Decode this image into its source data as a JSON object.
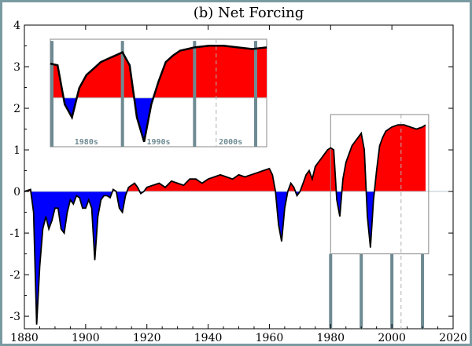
{
  "chart_data": {
    "type": "area",
    "title": "(b)  Net Forcing",
    "xlabel": "",
    "ylabel": "",
    "xlim": [
      1880,
      2020
    ],
    "ylim": [
      -3.3,
      4
    ],
    "xticks": [
      1880,
      1900,
      1920,
      1940,
      1960,
      1980,
      2000,
      2020
    ],
    "yticks": [
      4,
      3,
      2,
      1,
      0,
      -1,
      -2,
      -3
    ],
    "grid": false,
    "colors": {
      "positive": "#ff0000",
      "negative": "#0000ff",
      "line": "#000000",
      "highlight": "#6e8a92",
      "dashed": "#b0b0b0"
    },
    "series": [
      {
        "x": [
          1880,
          1882,
          1883,
          1884,
          1885,
          1886,
          1887,
          1888,
          1889,
          1890,
          1891,
          1892,
          1893,
          1894,
          1895,
          1896,
          1897,
          1898,
          1899,
          1900,
          1901,
          1902,
          1903,
          1904,
          1905,
          1906,
          1907,
          1908,
          1909,
          1910,
          1911,
          1912,
          1913,
          1914,
          1915,
          1916,
          1917,
          1918,
          1919,
          1920,
          1922,
          1924,
          1926,
          1928,
          1930,
          1932,
          1934,
          1936,
          1938,
          1940,
          1942,
          1944,
          1946,
          1948,
          1950,
          1952,
          1954,
          1956,
          1958,
          1960,
          1961,
          1962,
          1963,
          1964,
          1965,
          1966,
          1967,
          1968,
          1969,
          1970,
          1971,
          1972,
          1973,
          1974,
          1975,
          1976,
          1977,
          1978,
          1979,
          1980,
          1981,
          1982,
          1983,
          1984,
          1985,
          1986,
          1987,
          1988,
          1989,
          1990,
          1991,
          1992,
          1993,
          1994,
          1995,
          1996,
          1997,
          1998,
          1999,
          2000,
          2002,
          2004,
          2006,
          2008,
          2010,
          2011
        ],
        "values": [
          0.0,
          0.05,
          -0.5,
          -3.2,
          -1.8,
          -0.9,
          -0.6,
          -0.9,
          -0.7,
          -0.4,
          -0.4,
          -0.9,
          -1.0,
          -0.5,
          -0.2,
          -0.3,
          -0.1,
          -0.15,
          -0.4,
          -0.4,
          -0.2,
          -0.4,
          -1.65,
          -0.6,
          -0.2,
          -0.1,
          -0.1,
          -0.15,
          0.05,
          0.0,
          -0.4,
          -0.5,
          -0.1,
          0.1,
          0.15,
          0.2,
          0.1,
          -0.05,
          0.0,
          0.1,
          0.15,
          0.2,
          0.1,
          0.25,
          0.2,
          0.15,
          0.3,
          0.3,
          0.2,
          0.3,
          0.35,
          0.4,
          0.35,
          0.3,
          0.4,
          0.35,
          0.4,
          0.45,
          0.5,
          0.55,
          0.4,
          0.0,
          -0.8,
          -1.2,
          -0.4,
          0.0,
          0.2,
          0.1,
          -0.1,
          0.0,
          0.2,
          0.4,
          0.5,
          0.3,
          0.6,
          0.7,
          0.8,
          0.9,
          1.0,
          1.05,
          1.0,
          -0.2,
          -0.6,
          0.3,
          0.7,
          0.9,
          1.1,
          1.2,
          1.3,
          1.4,
          1.0,
          -0.6,
          -1.35,
          -0.2,
          0.5,
          1.1,
          1.3,
          1.45,
          1.5,
          1.55,
          1.6,
          1.6,
          1.55,
          1.5,
          1.55,
          1.6
        ]
      }
    ],
    "inset": {
      "xlim": [
        1980,
        2010
      ],
      "ylim": [
        -1.5,
        1.8
      ],
      "labels": [
        "1980s",
        "1990s",
        "2000s"
      ]
    }
  }
}
